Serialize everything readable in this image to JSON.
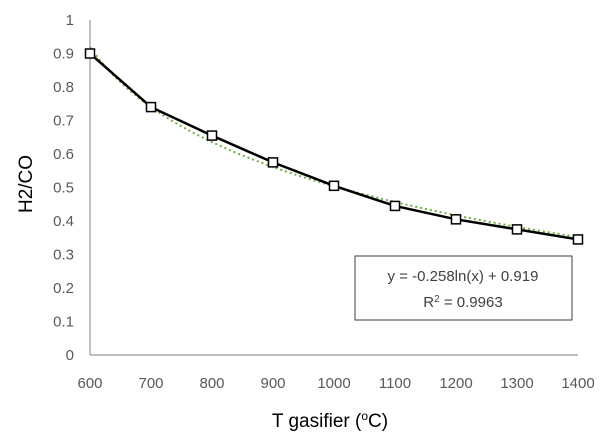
{
  "chart_data": {
    "type": "line",
    "xlabel": "T gasifier (",
    "xlabel_sup": "o",
    "xlabel_suffix": "C)",
    "ylabel": "H2/CO",
    "xlim": [
      600,
      1400
    ],
    "ylim": [
      0,
      1
    ],
    "x_ticks": [
      600,
      700,
      800,
      900,
      1000,
      1100,
      1200,
      1300,
      1400
    ],
    "y_ticks": [
      "0",
      "0.1",
      "0.2",
      "0.3",
      "0.4",
      "0.5",
      "0.6",
      "0.7",
      "0.8",
      "0.9",
      "1"
    ],
    "grid": false,
    "series": [
      {
        "x": [
          600,
          700,
          800,
          900,
          1000,
          1100,
          1200,
          1300,
          1400
        ],
        "y": [
          0.9,
          0.74,
          0.655,
          0.575,
          0.505,
          0.445,
          0.405,
          0.375,
          0.345
        ],
        "color": "#000000",
        "marker": "square"
      }
    ],
    "trendline": {
      "type": "logarithmic",
      "a": -0.258,
      "b": 0.919,
      "color": "#70ad47",
      "style": "dotted",
      "equation_prefix": "y = -0.258ln(x) + 0.919",
      "r2_label": "R",
      "r2_sup": "2",
      "r2_value": " = 0.9963"
    }
  }
}
